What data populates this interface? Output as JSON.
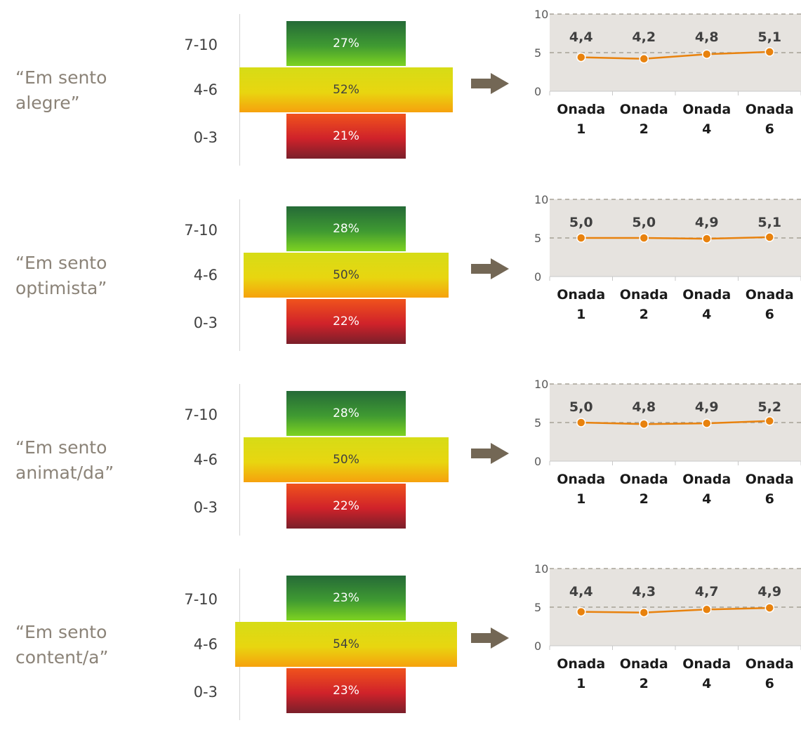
{
  "arrow_color": "#736755",
  "chart_bg": "#e6e3df",
  "line_color": "#e8820e",
  "dist_categories": [
    "7-10",
    "4-6",
    "0-3"
  ],
  "panels": [
    {
      "statement_line1": "“Em sento",
      "statement_line2": "alegre”",
      "high_pct": "27%",
      "mid_pct": "52%",
      "low_pct": "21%"
    },
    {
      "statement_line1": "“Em sento",
      "statement_line2": "optimista”",
      "high_pct": "28%",
      "mid_pct": "50%",
      "low_pct": "22%"
    },
    {
      "statement_line1": "“Em sento",
      "statement_line2": "animat/da”",
      "high_pct": "28%",
      "mid_pct": "50%",
      "low_pct": "22%"
    },
    {
      "statement_line1": "“Em sento",
      "statement_line2": "content/a”",
      "high_pct": "23%",
      "mid_pct": "54%",
      "low_pct": "23%"
    }
  ],
  "chart_data": [
    {
      "type": "bar",
      "categories": [
        "7-10",
        "4-6",
        "0-3"
      ],
      "values": [
        27,
        52,
        21
      ]
    },
    {
      "type": "line",
      "x": [
        "Onada 1",
        "Onada 2",
        "Onada 4",
        "Onada 6"
      ],
      "values": [
        4.4,
        4.2,
        4.8,
        5.1
      ],
      "labels": [
        "4,4",
        "4,2",
        "4,8",
        "5,1"
      ],
      "ylim": [
        0,
        10
      ],
      "yticks": [
        0,
        5,
        10
      ],
      "grid": true
    },
    {
      "type": "bar",
      "categories": [
        "7-10",
        "4-6",
        "0-3"
      ],
      "values": [
        28,
        50,
        22
      ]
    },
    {
      "type": "line",
      "x": [
        "Onada 1",
        "Onada 2",
        "Onada 4",
        "Onada 6"
      ],
      "values": [
        5.0,
        5.0,
        4.9,
        5.1
      ],
      "labels": [
        "5,0",
        "5,0",
        "4,9",
        "5,1"
      ],
      "ylim": [
        0,
        10
      ],
      "yticks": [
        0,
        5,
        10
      ],
      "grid": true
    },
    {
      "type": "bar",
      "categories": [
        "7-10",
        "4-6",
        "0-3"
      ],
      "values": [
        28,
        50,
        22
      ]
    },
    {
      "type": "line",
      "x": [
        "Onada 1",
        "Onada 2",
        "Onada 4",
        "Onada 6"
      ],
      "values": [
        5.0,
        4.8,
        4.9,
        5.2
      ],
      "labels": [
        "5,0",
        "4,8",
        "4,9",
        "5,2"
      ],
      "ylim": [
        0,
        10
      ],
      "yticks": [
        0,
        5,
        10
      ],
      "grid": true
    },
    {
      "type": "bar",
      "categories": [
        "7-10",
        "4-6",
        "0-3"
      ],
      "values": [
        23,
        54,
        23
      ]
    },
    {
      "type": "line",
      "x": [
        "Onada 1",
        "Onada 2",
        "Onada 4",
        "Onada 6"
      ],
      "values": [
        4.4,
        4.3,
        4.7,
        4.9
      ],
      "labels": [
        "4,4",
        "4,3",
        "4,7",
        "4,9"
      ],
      "ylim": [
        0,
        10
      ],
      "yticks": [
        0,
        5,
        10
      ],
      "grid": true
    }
  ]
}
